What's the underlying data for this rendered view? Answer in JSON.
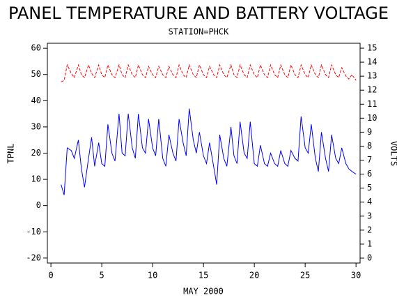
{
  "chart_data": {
    "type": "line",
    "title": "PANEL TEMPERATURE AND BATTERY VOLTAGE",
    "subtitle": "STATION=PHCK",
    "x_label": "MAY 2000",
    "y_label": "TPNL",
    "y2_label": "VOLTS",
    "x": [
      1.0,
      1.3,
      1.6,
      2.0,
      2.3,
      2.7,
      3.0,
      3.3,
      3.7,
      4.0,
      4.3,
      4.7,
      5.0,
      5.3,
      5.6,
      6.0,
      6.3,
      6.7,
      7.0,
      7.3,
      7.6,
      8.0,
      8.3,
      8.6,
      9.0,
      9.3,
      9.6,
      10.0,
      10.3,
      10.6,
      11.0,
      11.3,
      11.6,
      12.0,
      12.3,
      12.6,
      13.0,
      13.3,
      13.6,
      14.0,
      14.3,
      14.6,
      15.0,
      15.3,
      15.6,
      16.0,
      16.3,
      16.6,
      17.0,
      17.3,
      17.7,
      18.0,
      18.3,
      18.6,
      19.0,
      19.3,
      19.6,
      20.0,
      20.3,
      20.6,
      21.0,
      21.3,
      21.6,
      22.0,
      22.3,
      22.6,
      23.0,
      23.3,
      23.6,
      24.0,
      24.3,
      24.6,
      25.0,
      25.3,
      25.6,
      26.0,
      26.3,
      26.6,
      27.0,
      27.3,
      27.6,
      28.0,
      28.3,
      28.6,
      29.0,
      29.3,
      29.6,
      30.0
    ],
    "series": [
      {
        "color": "#0000ff",
        "dashed": false,
        "axis": "y",
        "values": [
          8,
          4,
          22,
          21,
          18,
          25,
          14,
          7,
          18,
          26,
          15,
          24,
          16,
          15,
          31,
          20,
          17,
          35,
          20,
          19,
          35,
          22,
          18,
          35,
          22,
          20,
          33,
          22,
          19,
          33,
          18,
          15,
          27,
          20,
          17,
          33,
          24,
          19,
          37,
          25,
          20,
          28,
          19,
          16,
          24,
          15,
          8,
          27,
          18,
          15,
          30,
          19,
          16,
          32,
          20,
          18,
          32,
          16,
          15,
          23,
          16,
          15,
          20,
          16,
          15,
          21,
          16,
          15,
          21,
          18,
          17,
          34,
          22,
          20,
          31,
          18,
          13,
          28,
          18,
          13,
          27,
          18,
          16,
          22,
          16,
          14,
          13,
          12
        ]
      },
      {
        "color": "#ff0000",
        "dashed": true,
        "axis": "y2",
        "values": [
          12.6,
          12.7,
          13.8,
          13.2,
          12.9,
          13.8,
          13.1,
          12.9,
          13.8,
          13.2,
          12.9,
          13.8,
          13.1,
          12.9,
          13.8,
          13.1,
          12.9,
          13.8,
          13.1,
          12.9,
          13.8,
          13.1,
          12.9,
          13.8,
          13.1,
          12.9,
          13.7,
          13.1,
          12.9,
          13.7,
          13.1,
          12.9,
          13.7,
          13.1,
          12.9,
          13.8,
          13.1,
          12.9,
          13.8,
          13.1,
          12.9,
          13.8,
          13.1,
          12.9,
          13.7,
          13.1,
          12.9,
          13.8,
          13.1,
          12.9,
          13.8,
          13.1,
          12.9,
          13.8,
          13.1,
          12.9,
          13.8,
          13.1,
          12.9,
          13.8,
          13.1,
          12.9,
          13.8,
          13.1,
          12.9,
          13.8,
          13.1,
          12.9,
          13.8,
          13.1,
          12.9,
          13.8,
          13.1,
          12.9,
          13.8,
          13.1,
          12.9,
          13.8,
          13.1,
          12.9,
          13.8,
          13.1,
          12.9,
          13.6,
          13.0,
          12.8,
          13.1,
          12.7
        ]
      }
    ],
    "xlim": [
      -0.35,
      30.4
    ],
    "xticks": [
      0,
      5,
      10,
      15,
      20,
      25,
      30
    ],
    "ylim": [
      -21.9,
      61.9
    ],
    "yticks": [
      -20,
      -10,
      0,
      10,
      20,
      30,
      40,
      50,
      60
    ],
    "y2lim": [
      -0.35,
      15.35
    ],
    "y2ticks": [
      0,
      1,
      2,
      3,
      4,
      5,
      6,
      7,
      8,
      9,
      10,
      11,
      12,
      13,
      14,
      15
    ]
  }
}
